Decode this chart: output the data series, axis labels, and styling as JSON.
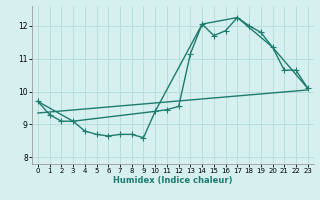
{
  "xlabel": "Humidex (Indice chaleur)",
  "background_color": "#d6f0f0",
  "grid_color": "#b8dede",
  "line_color": "#1e7b6e",
  "xlim": [
    -0.5,
    23.5
  ],
  "ylim": [
    7.8,
    12.6
  ],
  "xticks": [
    0,
    1,
    2,
    3,
    4,
    5,
    6,
    7,
    8,
    9,
    10,
    11,
    12,
    13,
    14,
    15,
    16,
    17,
    18,
    19,
    20,
    21,
    22,
    23
  ],
  "yticks": [
    8,
    9,
    10,
    11,
    12
  ],
  "series1_x": [
    0,
    1,
    2,
    3,
    4,
    5,
    6,
    7,
    8,
    9,
    10,
    11,
    12,
    13,
    14,
    15,
    16,
    17,
    18,
    19,
    20,
    21,
    22,
    23
  ],
  "series1_y": [
    9.7,
    9.3,
    9.1,
    9.1,
    8.8,
    8.7,
    8.65,
    8.7,
    8.7,
    8.6,
    9.4,
    9.45,
    9.55,
    11.15,
    12.05,
    11.7,
    11.85,
    12.25,
    12.0,
    11.8,
    11.35,
    10.65,
    10.65,
    10.1
  ],
  "series2_x": [
    0,
    3,
    10,
    14,
    17,
    20,
    23
  ],
  "series2_y": [
    9.7,
    9.1,
    9.4,
    12.05,
    12.25,
    11.35,
    10.1
  ],
  "series3_x": [
    0,
    23
  ],
  "series3_y": [
    9.35,
    10.05
  ],
  "marker": "+",
  "markersize": 4,
  "linewidth": 1.0
}
